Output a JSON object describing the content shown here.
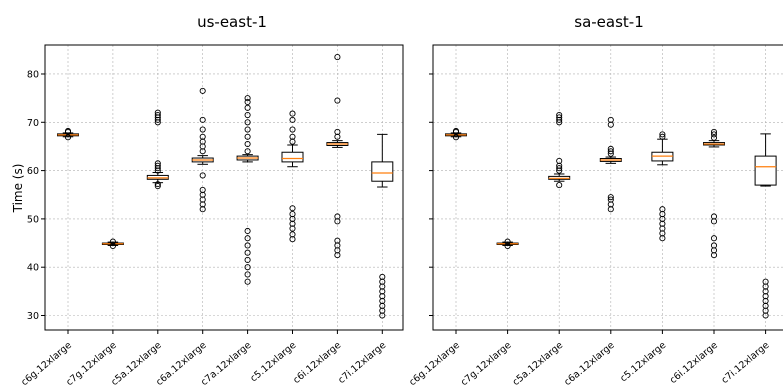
{
  "chart_data": [
    {
      "type": "box",
      "title": "us-east-1",
      "ylabel": "Time (s)",
      "ylim": [
        27,
        86
      ],
      "yticks": [
        30,
        40,
        50,
        60,
        70,
        80
      ],
      "grid": true,
      "categories": [
        "c6g.12xlarge",
        "c7g.12xlarge",
        "c5a.12xlarge",
        "c6a.12xlarge",
        "c7a.12xlarge",
        "c5.12xlarge",
        "c6i.12xlarge",
        "c7i.12xlarge"
      ],
      "boxes": [
        {
          "q1": 67.2,
          "median": 67.4,
          "q3": 67.6,
          "whisker_low": 67.0,
          "whisker_high": 67.8,
          "outliers": [
            66.9,
            68.0,
            68.2
          ]
        },
        {
          "q1": 44.7,
          "median": 44.85,
          "q3": 45.0,
          "whisker_low": 44.5,
          "whisker_high": 45.2,
          "outliers": [
            44.4,
            45.3
          ]
        },
        {
          "q1": 58.2,
          "median": 58.5,
          "q3": 59.0,
          "whisker_low": 57.5,
          "whisker_high": 59.6,
          "outliers": [
            56.8,
            57.2,
            60.0,
            60.5,
            61.0,
            61.5,
            70.0,
            70.5,
            71.0,
            71.5,
            72.0
          ]
        },
        {
          "q1": 61.8,
          "median": 62.2,
          "q3": 62.6,
          "whisker_low": 61.3,
          "whisker_high": 63.1,
          "outliers": [
            52.0,
            53.0,
            54.0,
            55.0,
            56.0,
            59.0,
            64.0,
            65.0,
            66.0,
            67.0,
            68.5,
            70.5,
            76.5
          ]
        },
        {
          "q1": 62.2,
          "median": 62.6,
          "q3": 63.0,
          "whisker_low": 61.8,
          "whisker_high": 63.3,
          "outliers": [
            37.0,
            38.5,
            40.0,
            41.5,
            43.0,
            44.5,
            46.0,
            47.5,
            64.0,
            65.5,
            67.0,
            68.5,
            70.0,
            71.5,
            73.0,
            74.2,
            75.0
          ]
        },
        {
          "q1": 61.8,
          "median": 62.5,
          "q3": 63.8,
          "whisker_low": 60.8,
          "whisker_high": 65.3,
          "outliers": [
            45.8,
            46.8,
            48.0,
            49.0,
            50.0,
            51.0,
            52.2,
            66.0,
            67.0,
            68.5,
            70.5,
            71.8
          ]
        },
        {
          "q1": 65.2,
          "median": 65.5,
          "q3": 65.8,
          "whisker_low": 64.8,
          "whisker_high": 66.2,
          "outliers": [
            42.5,
            43.5,
            44.5,
            45.5,
            49.5,
            50.5,
            67.0,
            68.0,
            74.5,
            83.5
          ]
        },
        {
          "q1": 57.8,
          "median": 59.5,
          "q3": 61.8,
          "whisker_low": 56.6,
          "whisker_high": 67.5,
          "outliers": [
            30.0,
            31.0,
            32.0,
            33.0,
            34.0,
            35.0,
            36.0,
            37.0,
            38.0
          ]
        }
      ]
    },
    {
      "type": "box",
      "title": "sa-east-1",
      "ylim": [
        27,
        86
      ],
      "yticks": [
        30,
        40,
        50,
        60,
        70,
        80
      ],
      "grid": true,
      "categories": [
        "c6g.12xlarge",
        "c7g.12xlarge",
        "c5a.12xlarge",
        "c6a.12xlarge",
        "c5.12xlarge",
        "c6i.12xlarge",
        "c7i.12xlarge"
      ],
      "boxes": [
        {
          "q1": 67.2,
          "median": 67.4,
          "q3": 67.6,
          "whisker_low": 67.0,
          "whisker_high": 67.8,
          "outliers": [
            66.9,
            68.0,
            68.2
          ]
        },
        {
          "q1": 44.7,
          "median": 44.85,
          "q3": 45.0,
          "whisker_low": 44.5,
          "whisker_high": 45.2,
          "outliers": [
            44.4,
            45.3
          ]
        },
        {
          "q1": 58.2,
          "median": 58.4,
          "q3": 58.8,
          "whisker_low": 57.8,
          "whisker_high": 59.3,
          "outliers": [
            57.0,
            60.0,
            60.5,
            61.0,
            62.0,
            70.0,
            70.5,
            71.0,
            71.5
          ]
        },
        {
          "q1": 61.9,
          "median": 62.2,
          "q3": 62.5,
          "whisker_low": 61.5,
          "whisker_high": 62.8,
          "outliers": [
            52.0,
            53.0,
            54.0,
            54.5,
            63.5,
            64.0,
            64.5,
            69.5,
            70.5
          ]
        },
        {
          "q1": 62.0,
          "median": 63.0,
          "q3": 63.8,
          "whisker_low": 61.2,
          "whisker_high": 66.5,
          "outliers": [
            46.0,
            47.0,
            48.0,
            49.0,
            50.0,
            51.0,
            52.0,
            67.0,
            67.5
          ]
        },
        {
          "q1": 65.3,
          "median": 65.5,
          "q3": 65.8,
          "whisker_low": 64.9,
          "whisker_high": 66.2,
          "outliers": [
            42.5,
            43.5,
            44.5,
            46.0,
            49.5,
            50.5,
            66.8,
            67.5,
            68.0
          ]
        },
        {
          "q1": 57.0,
          "median": 60.8,
          "q3": 63.0,
          "whisker_low": 56.8,
          "whisker_high": 67.6,
          "outliers": [
            30.0,
            31.0,
            32.0,
            33.0,
            34.0,
            35.0,
            36.0,
            37.0
          ]
        }
      ]
    }
  ],
  "colors": {
    "box_edge": "#000000",
    "median": "#ff7f0e",
    "grid": "#b0b0b0"
  }
}
